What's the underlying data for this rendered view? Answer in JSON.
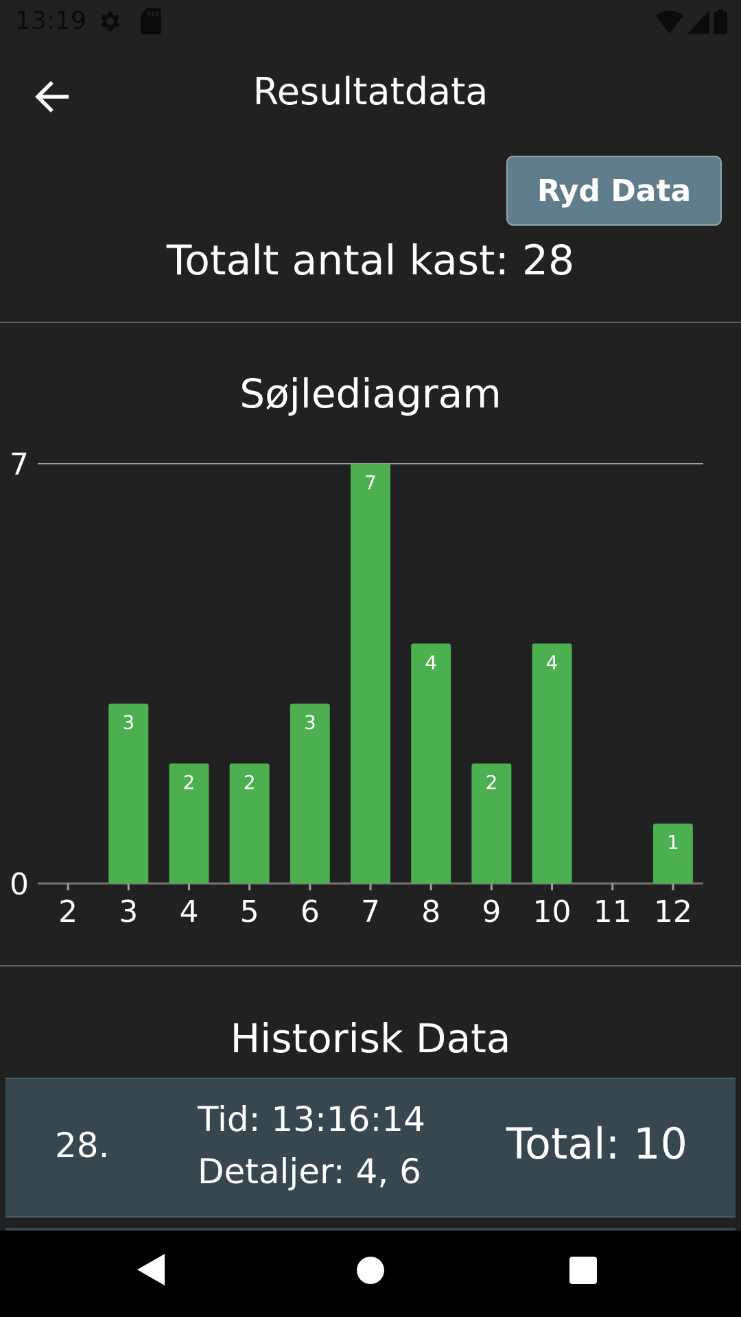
{
  "status_bar": {
    "time": "13:19"
  },
  "app_bar": {
    "title": "Resultatdata"
  },
  "actions": {
    "clear_label": "Ryd Data"
  },
  "summary": {
    "total_text": "Totalt antal kast: 28"
  },
  "chart_section": {
    "title": "Søjlediagram"
  },
  "chart_data": {
    "type": "bar",
    "categories": [
      "2",
      "3",
      "4",
      "5",
      "6",
      "7",
      "8",
      "9",
      "10",
      "11",
      "12"
    ],
    "values": [
      0,
      3,
      2,
      2,
      3,
      7,
      4,
      2,
      4,
      0,
      1
    ],
    "ylim": [
      0,
      7
    ],
    "y_ticks": [
      0,
      7
    ],
    "bar_color": "#4caf50",
    "grid": "top line at max"
  },
  "history": {
    "title": "Historisk Data",
    "rows": [
      {
        "index": "28.",
        "time": "Tid: 13:16:14",
        "details": "Detaljer: 4, 6",
        "total": "Total: 10"
      }
    ]
  },
  "colors": {
    "background": "#212121",
    "button": "#607d8b",
    "row_background": "#37474f",
    "bar": "#4caf50"
  },
  "icons": {
    "back": "arrow-left-icon",
    "settings": "gear-icon",
    "sd": "sd-card-icon",
    "wifi": "wifi-icon",
    "signal": "signal-icon",
    "battery": "battery-icon"
  }
}
